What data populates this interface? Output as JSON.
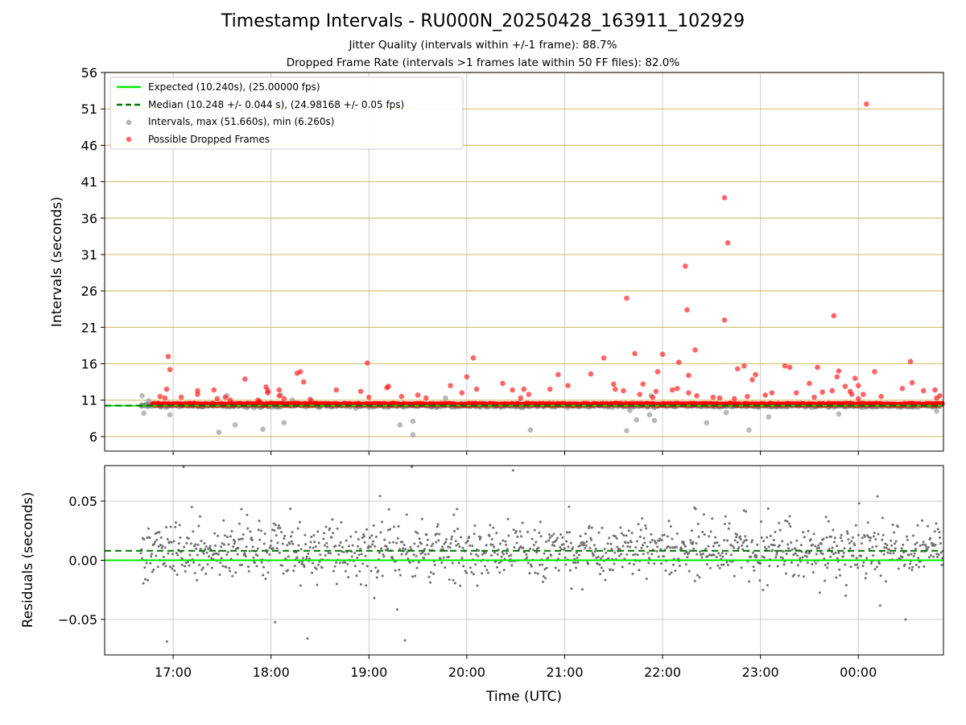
{
  "title": "Timestamp Intervals - RU000N_20250428_163911_102929",
  "subtitle_jitter": "Jitter Quality (intervals within +/-1 frame): 88.7%",
  "subtitle_dropped": "Dropped Frame Rate (intervals >1 frames late within 50 FF files): 82.0%",
  "colors": {
    "expected": "#00ee00",
    "median": "#007700",
    "intervals": "#808080",
    "dropped": "#ff0000",
    "ref_lines": "#d4c27a",
    "grid": "#cccccc",
    "residuals": "#707070"
  },
  "chart_data": [
    {
      "type": "scatter",
      "ylabel": "Intervals (seconds)",
      "ylim": [
        4,
        56
      ],
      "y_ticks": [
        "6",
        "11",
        "16",
        "21",
        "26",
        "31",
        "36",
        "41",
        "46",
        "51",
        "56"
      ],
      "x_ticks": [
        "17:00",
        "18:00",
        "19:00",
        "20:00",
        "21:00",
        "22:00",
        "23:00",
        "00:00"
      ],
      "x_range_hours_utc": [
        16.3,
        24.87
      ],
      "data_start_hour_utc": 16.67,
      "grid": true,
      "legend_position": "top-left",
      "legend": [
        "Expected (10.240s), (25.00000 fps)",
        "Median (10.248 +/- 0.044 s), (24.98168 +/- 0.05 fps)",
        "Intervals, max (51.660s), min (6.260s)",
        "Possible Dropped Frames"
      ],
      "expected_interval_s": 10.24,
      "median_interval_s": 10.248,
      "interval_max_s": 51.66,
      "interval_min_s": 6.26,
      "dropped_frames": [
        {
          "x": "16:52",
          "y": 11.5
        },
        {
          "x": "16:55",
          "y": 11.3
        },
        {
          "x": "16:57",
          "y": 17.0
        },
        {
          "x": "16:58",
          "y": 15.2
        },
        {
          "x": "16:56",
          "y": 12.5
        },
        {
          "x": "17:05",
          "y": 11.4
        },
        {
          "x": "17:15",
          "y": 12.3
        },
        {
          "x": "17:15",
          "y": 11.8
        },
        {
          "x": "17:25",
          "y": 12.4
        },
        {
          "x": "17:27",
          "y": 11.2
        },
        {
          "x": "17:32",
          "y": 11.4
        },
        {
          "x": "17:35",
          "y": 11.0
        },
        {
          "x": "17:44",
          "y": 13.9
        },
        {
          "x": "17:52",
          "y": 11.0
        },
        {
          "x": "17:57",
          "y": 12.8
        },
        {
          "x": "17:58",
          "y": 12.0
        },
        {
          "x": "18:05",
          "y": 12.4
        },
        {
          "x": "18:08",
          "y": 11.2
        },
        {
          "x": "17:53",
          "y": 10.6
        },
        {
          "x": "17:53",
          "y": 10.8
        },
        {
          "x": "17:58",
          "y": 12.3
        },
        {
          "x": "18:05",
          "y": 11.6
        },
        {
          "x": "18:16",
          "y": 14.7
        },
        {
          "x": "18:18",
          "y": 14.9
        },
        {
          "x": "18:20",
          "y": 13.5
        },
        {
          "x": "18:24",
          "y": 11.1
        },
        {
          "x": "18:40",
          "y": 12.4
        },
        {
          "x": "18:55",
          "y": 12.2
        },
        {
          "x": "19:11",
          "y": 12.7
        },
        {
          "x": "19:12",
          "y": 12.9
        },
        {
          "x": "19:20",
          "y": 11.5
        },
        {
          "x": "18:59",
          "y": 16.1
        },
        {
          "x": "19:00",
          "y": 11.4
        },
        {
          "x": "19:30",
          "y": 11.7
        },
        {
          "x": "19:35",
          "y": 11.3
        },
        {
          "x": "19:50",
          "y": 13.0
        },
        {
          "x": "19:57",
          "y": 12.0
        },
        {
          "x": "20:00",
          "y": 14.2
        },
        {
          "x": "20:04",
          "y": 16.8
        },
        {
          "x": "20:06",
          "y": 12.5
        },
        {
          "x": "20:22",
          "y": 13.3
        },
        {
          "x": "20:28",
          "y": 12.4
        },
        {
          "x": "20:33",
          "y": 11.3
        },
        {
          "x": "20:35",
          "y": 12.5
        },
        {
          "x": "20:38",
          "y": 11.8
        },
        {
          "x": "20:51",
          "y": 12.5
        },
        {
          "x": "20:56",
          "y": 14.5
        },
        {
          "x": "21:02",
          "y": 13.0
        },
        {
          "x": "21:16",
          "y": 14.6
        },
        {
          "x": "21:24",
          "y": 16.8
        },
        {
          "x": "21:30",
          "y": 13.2
        },
        {
          "x": "21:31",
          "y": 12.5
        },
        {
          "x": "21:36",
          "y": 12.3
        },
        {
          "x": "21:46",
          "y": 11.8
        },
        {
          "x": "21:54",
          "y": 11.4
        },
        {
          "x": "21:56",
          "y": 12.2
        },
        {
          "x": "22:06",
          "y": 12.4
        },
        {
          "x": "22:09",
          "y": 12.6
        },
        {
          "x": "22:16",
          "y": 12.0
        },
        {
          "x": "22:21",
          "y": 11.6
        },
        {
          "x": "22:31",
          "y": 11.4
        },
        {
          "x": "22:35",
          "y": 11.3
        },
        {
          "x": "22:44",
          "y": 11.2
        },
        {
          "x": "22:52",
          "y": 11.5
        },
        {
          "x": "23:03",
          "y": 11.7
        },
        {
          "x": "23:07",
          "y": 12.0
        },
        {
          "x": "23:15",
          "y": 15.7
        },
        {
          "x": "23:18",
          "y": 15.5
        },
        {
          "x": "23:22",
          "y": 12.0
        },
        {
          "x": "23:30",
          "y": 13.3
        },
        {
          "x": "23:33",
          "y": 11.4
        },
        {
          "x": "23:38",
          "y": 12.1
        },
        {
          "x": "23:44",
          "y": 12.3
        },
        {
          "x": "23:55",
          "y": 12.2
        },
        {
          "x": "23:56",
          "y": 11.8
        },
        {
          "x": "23:58",
          "y": 14.0
        },
        {
          "x": "00:03",
          "y": 11.8
        },
        {
          "x": "00:14",
          "y": 11.5
        },
        {
          "x": "00:27",
          "y": 12.6
        },
        {
          "x": "00:32",
          "y": 16.3
        },
        {
          "x": "00:33",
          "y": 13.4
        },
        {
          "x": "00:40",
          "y": 12.3
        },
        {
          "x": "00:47",
          "y": 12.4
        },
        {
          "x": "00:48",
          "y": 11.3
        },
        {
          "x": "00:50",
          "y": 11.6
        },
        {
          "x": "00:10",
          "y": 14.9
        },
        {
          "x": "00:00",
          "y": 11.2
        },
        {
          "x": "21:38",
          "y": 25.0
        },
        {
          "x": "21:43",
          "y": 17.4
        },
        {
          "x": "21:57",
          "y": 14.9
        },
        {
          "x": "22:00",
          "y": 17.3
        },
        {
          "x": "22:14",
          "y": 29.4
        },
        {
          "x": "22:15",
          "y": 23.4
        },
        {
          "x": "22:16",
          "y": 14.4
        },
        {
          "x": "22:20",
          "y": 17.9
        },
        {
          "x": "22:38",
          "y": 38.8
        },
        {
          "x": "22:40",
          "y": 32.6
        },
        {
          "x": "22:38",
          "y": 22.0
        },
        {
          "x": "22:46",
          "y": 15.3
        },
        {
          "x": "22:50",
          "y": 15.7
        },
        {
          "x": "22:57",
          "y": 14.5
        },
        {
          "x": "23:35",
          "y": 15.5
        },
        {
          "x": "23:48",
          "y": 15.0
        },
        {
          "x": "23:52",
          "y": 12.9
        },
        {
          "x": "00:05",
          "y": 51.66
        },
        {
          "x": "23:45",
          "y": 22.6
        },
        {
          "x": "23:47",
          "y": 14.2
        },
        {
          "x": "00:00",
          "y": 13.0
        },
        {
          "x": "22:10",
          "y": 16.2
        },
        {
          "x": "21:48",
          "y": 13.2
        },
        {
          "x": "22:55",
          "y": 13.8
        }
      ],
      "gray_outliers": [
        {
          "x": "16:41",
          "y": 11.6
        },
        {
          "x": "16:42",
          "y": 9.2
        },
        {
          "x": "16:45",
          "y": 10.9
        },
        {
          "x": "16:58",
          "y": 9.0
        },
        {
          "x": "17:28",
          "y": 6.6
        },
        {
          "x": "17:33",
          "y": 11.6
        },
        {
          "x": "17:38",
          "y": 7.6
        },
        {
          "x": "17:55",
          "y": 7.0
        },
        {
          "x": "18:08",
          "y": 7.9
        },
        {
          "x": "18:06",
          "y": 11.7
        },
        {
          "x": "18:13",
          "y": 11.0
        },
        {
          "x": "18:25",
          "y": 10.9
        },
        {
          "x": "18:52",
          "y": 9.9
        },
        {
          "x": "19:19",
          "y": 7.6
        },
        {
          "x": "19:27",
          "y": 8.1
        },
        {
          "x": "19:27",
          "y": 6.26
        },
        {
          "x": "19:47",
          "y": 11.3
        },
        {
          "x": "20:39",
          "y": 6.9
        },
        {
          "x": "21:38",
          "y": 6.8
        },
        {
          "x": "21:40",
          "y": 9.6
        },
        {
          "x": "21:44",
          "y": 8.3
        },
        {
          "x": "21:52",
          "y": 9.0
        },
        {
          "x": "21:53",
          "y": 11.6
        },
        {
          "x": "21:55",
          "y": 8.2
        },
        {
          "x": "22:27",
          "y": 7.9
        },
        {
          "x": "22:39",
          "y": 9.3
        },
        {
          "x": "22:53",
          "y": 6.9
        },
        {
          "x": "23:05",
          "y": 8.7
        },
        {
          "x": "23:48",
          "y": 9.1
        },
        {
          "x": "00:48",
          "y": 9.5
        }
      ]
    },
    {
      "type": "scatter",
      "xlabel": "Time (UTC)",
      "ylabel": "Residuals (seconds)",
      "ylim": [
        -0.08,
        0.08
      ],
      "y_ticks": [
        "−0.05",
        "0.00",
        "0.05"
      ],
      "grid": true,
      "expected_residual_s": 0.0,
      "median_residual_s": 0.008,
      "residual_spread_s": 0.012
    }
  ]
}
